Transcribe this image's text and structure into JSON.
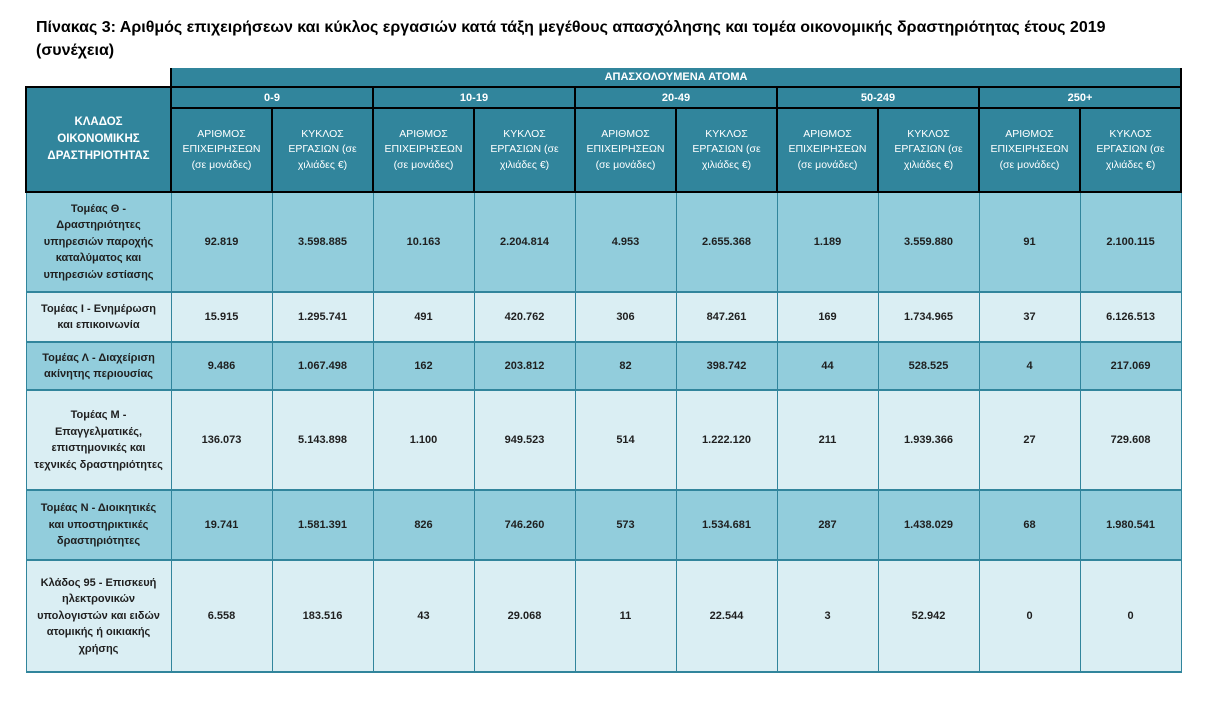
{
  "page": {
    "title": "Πίνακας 3: Αριθμός επιχειρήσεων και κύκλος εργασιών κατά τάξη μεγέθους απασχόλησης  και τομέα οικονομικής δραστηριότητας έτους 2019 (συνέχεια)"
  },
  "colors": {
    "header_bg": "#31859C",
    "row_medium": "#92CDDC",
    "row_light": "#DAEEF3",
    "grid_border": "#31859C",
    "header_border": "#000000",
    "header_text": "#FFFFFF",
    "body_text": "#1F1F1F"
  },
  "table": {
    "group_header": "ΑΠΑΣΧΟΛΟΥΜΕΝΑ ΑΤΟΜΑ",
    "row_header": "ΚΛΑΔΟΣ ΟΙΚΟΝΟΜΙΚΗΣ ΔΡΑΣΤΗΡΙΟΤΗΤΑΣ",
    "size_classes": [
      "0-9",
      "10-19",
      "20-49",
      "50-249",
      "250+"
    ],
    "subheaders": [
      "ΑΡΙΘΜΟΣ ΕΠΙΧΕΙΡΗΣΕΩΝ (σε μονάδες)",
      "ΚΥΚΛΟΣ ΕΡΓΑΣΙΩΝ (σε χιλιάδες €)"
    ],
    "rows": [
      {
        "label": "Τομέας Θ - Δραστηριότητες υπηρεσιών παροχής καταλύματος και υπηρεσιών εστίασης",
        "values": [
          "92.819",
          "3.598.885",
          "10.163",
          "2.204.814",
          "4.953",
          "2.655.368",
          "1.189",
          "3.559.880",
          "91",
          "2.100.115"
        ]
      },
      {
        "label": "Τομέας Ι - Ενημέρωση και επικοινωνία",
        "values": [
          "15.915",
          "1.295.741",
          "491",
          "420.762",
          "306",
          "847.261",
          "169",
          "1.734.965",
          "37",
          "6.126.513"
        ]
      },
      {
        "label": "Τομέας Λ - Διαχείριση ακίνητης περιουσίας",
        "values": [
          "9.486",
          "1.067.498",
          "162",
          "203.812",
          "82",
          "398.742",
          "44",
          "528.525",
          "4",
          "217.069"
        ]
      },
      {
        "label": "Τομέας Μ - Επαγγελματικές, επιστημονικές και τεχνικές δραστηριότητες",
        "values": [
          "136.073",
          "5.143.898",
          "1.100",
          "949.523",
          "514",
          "1.222.120",
          "211",
          "1.939.366",
          "27",
          "729.608"
        ]
      },
      {
        "label": "Τομέας Ν - Διοικητικές και υποστηρικτικές δραστηριότητες",
        "values": [
          "19.741",
          "1.581.391",
          "826",
          "746.260",
          "573",
          "1.534.681",
          "287",
          "1.438.029",
          "68",
          "1.980.541"
        ]
      },
      {
        "label": "Κλάδος 95 - Επισκευή ηλεκτρονικών υπολογιστών και ειδών ατομικής ή οικιακής χρήσης",
        "values": [
          "6.558",
          "183.516",
          "43",
          "29.068",
          "11",
          "22.544",
          "3",
          "52.942",
          "0",
          "0"
        ]
      }
    ]
  }
}
